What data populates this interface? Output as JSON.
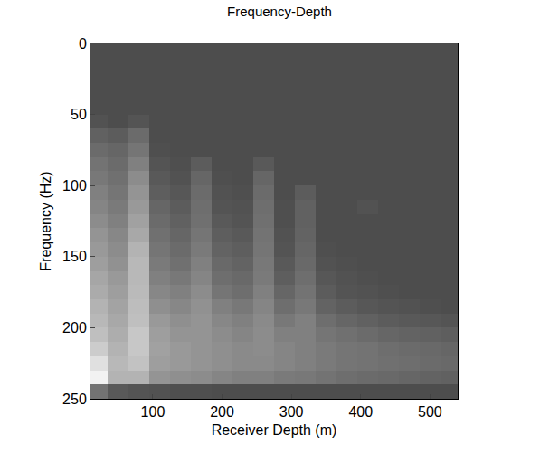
{
  "chart_data": {
    "type": "heatmap",
    "title": "Frequency-Depth",
    "x_label": "Receiver Depth (m)",
    "y_label": "Frequency (Hz)",
    "xlim": [
      10,
      540
    ],
    "xticks": [
      100,
      200,
      300,
      400,
      500
    ],
    "ylim": [
      250,
      0
    ],
    "yticks": [
      0,
      50,
      100,
      150,
      200,
      250
    ],
    "zlim": [
      0,
      1
    ],
    "x": [
      20,
      50,
      80,
      110,
      140,
      170,
      200,
      230,
      260,
      290,
      320,
      350,
      380,
      410,
      440,
      470,
      500,
      530
    ],
    "y": [
      5,
      15,
      25,
      35,
      45,
      55,
      65,
      75,
      85,
      95,
      105,
      115,
      125,
      135,
      145,
      155,
      165,
      175,
      185,
      195,
      205,
      215,
      225,
      235,
      245
    ],
    "z": [
      [
        0.3,
        0.3,
        0.3,
        0.3,
        0.3,
        0.3,
        0.3,
        0.3,
        0.3,
        0.3,
        0.3,
        0.3,
        0.3,
        0.3,
        0.3,
        0.3,
        0.3,
        0.3
      ],
      [
        0.3,
        0.3,
        0.3,
        0.3,
        0.3,
        0.3,
        0.3,
        0.3,
        0.3,
        0.3,
        0.3,
        0.3,
        0.3,
        0.3,
        0.3,
        0.3,
        0.3,
        0.3
      ],
      [
        0.3,
        0.3,
        0.3,
        0.3,
        0.3,
        0.3,
        0.3,
        0.3,
        0.3,
        0.3,
        0.3,
        0.3,
        0.3,
        0.3,
        0.3,
        0.3,
        0.3,
        0.3
      ],
      [
        0.3,
        0.3,
        0.3,
        0.3,
        0.3,
        0.3,
        0.3,
        0.3,
        0.3,
        0.3,
        0.3,
        0.3,
        0.3,
        0.3,
        0.3,
        0.3,
        0.3,
        0.3
      ],
      [
        0.3,
        0.3,
        0.3,
        0.3,
        0.3,
        0.3,
        0.3,
        0.3,
        0.3,
        0.3,
        0.3,
        0.3,
        0.3,
        0.3,
        0.3,
        0.3,
        0.3,
        0.3
      ],
      [
        0.32,
        0.3,
        0.33,
        0.3,
        0.3,
        0.3,
        0.3,
        0.3,
        0.3,
        0.3,
        0.3,
        0.3,
        0.3,
        0.3,
        0.3,
        0.3,
        0.3,
        0.3
      ],
      [
        0.38,
        0.36,
        0.42,
        0.3,
        0.3,
        0.3,
        0.3,
        0.3,
        0.3,
        0.3,
        0.3,
        0.3,
        0.3,
        0.3,
        0.3,
        0.3,
        0.3,
        0.3
      ],
      [
        0.42,
        0.4,
        0.46,
        0.31,
        0.3,
        0.3,
        0.3,
        0.3,
        0.3,
        0.3,
        0.3,
        0.3,
        0.3,
        0.3,
        0.3,
        0.3,
        0.3,
        0.3
      ],
      [
        0.45,
        0.42,
        0.5,
        0.33,
        0.31,
        0.36,
        0.3,
        0.3,
        0.35,
        0.3,
        0.3,
        0.3,
        0.3,
        0.3,
        0.3,
        0.3,
        0.3,
        0.3
      ],
      [
        0.47,
        0.44,
        0.55,
        0.35,
        0.32,
        0.4,
        0.31,
        0.3,
        0.4,
        0.3,
        0.3,
        0.3,
        0.3,
        0.3,
        0.3,
        0.3,
        0.3,
        0.3
      ],
      [
        0.5,
        0.46,
        0.58,
        0.37,
        0.34,
        0.42,
        0.32,
        0.31,
        0.42,
        0.3,
        0.36,
        0.3,
        0.3,
        0.3,
        0.3,
        0.3,
        0.3,
        0.3
      ],
      [
        0.52,
        0.48,
        0.6,
        0.4,
        0.36,
        0.43,
        0.33,
        0.32,
        0.43,
        0.31,
        0.38,
        0.3,
        0.3,
        0.32,
        0.3,
        0.3,
        0.3,
        0.3
      ],
      [
        0.55,
        0.5,
        0.63,
        0.42,
        0.38,
        0.44,
        0.35,
        0.33,
        0.44,
        0.31,
        0.38,
        0.3,
        0.3,
        0.3,
        0.3,
        0.3,
        0.3,
        0.3
      ],
      [
        0.58,
        0.53,
        0.66,
        0.44,
        0.4,
        0.46,
        0.37,
        0.35,
        0.45,
        0.32,
        0.39,
        0.3,
        0.3,
        0.3,
        0.3,
        0.3,
        0.3,
        0.3
      ],
      [
        0.6,
        0.55,
        0.7,
        0.46,
        0.42,
        0.48,
        0.39,
        0.37,
        0.46,
        0.33,
        0.4,
        0.31,
        0.3,
        0.3,
        0.3,
        0.3,
        0.3,
        0.3
      ],
      [
        0.62,
        0.57,
        0.72,
        0.48,
        0.44,
        0.5,
        0.41,
        0.39,
        0.47,
        0.35,
        0.41,
        0.32,
        0.31,
        0.3,
        0.3,
        0.3,
        0.3,
        0.3
      ],
      [
        0.65,
        0.6,
        0.72,
        0.5,
        0.47,
        0.52,
        0.43,
        0.41,
        0.48,
        0.37,
        0.43,
        0.34,
        0.32,
        0.31,
        0.3,
        0.3,
        0.3,
        0.3
      ],
      [
        0.67,
        0.62,
        0.73,
        0.53,
        0.5,
        0.55,
        0.46,
        0.43,
        0.5,
        0.4,
        0.45,
        0.36,
        0.33,
        0.32,
        0.31,
        0.3,
        0.3,
        0.3
      ],
      [
        0.7,
        0.64,
        0.74,
        0.56,
        0.53,
        0.57,
        0.5,
        0.47,
        0.52,
        0.43,
        0.47,
        0.39,
        0.36,
        0.34,
        0.33,
        0.32,
        0.31,
        0.3
      ],
      [
        0.72,
        0.66,
        0.75,
        0.6,
        0.56,
        0.58,
        0.53,
        0.5,
        0.54,
        0.47,
        0.5,
        0.43,
        0.4,
        0.38,
        0.36,
        0.35,
        0.34,
        0.33
      ],
      [
        0.75,
        0.68,
        0.78,
        0.62,
        0.58,
        0.58,
        0.55,
        0.52,
        0.55,
        0.5,
        0.5,
        0.46,
        0.44,
        0.42,
        0.4,
        0.39,
        0.38,
        0.37
      ],
      [
        0.8,
        0.7,
        0.78,
        0.63,
        0.6,
        0.58,
        0.56,
        0.54,
        0.55,
        0.52,
        0.5,
        0.48,
        0.46,
        0.45,
        0.43,
        0.42,
        0.41,
        0.4
      ],
      [
        0.88,
        0.72,
        0.76,
        0.62,
        0.6,
        0.58,
        0.56,
        0.54,
        0.54,
        0.52,
        0.5,
        0.48,
        0.46,
        0.45,
        0.44,
        0.43,
        0.42,
        0.41
      ],
      [
        0.95,
        0.7,
        0.7,
        0.58,
        0.56,
        0.55,
        0.52,
        0.5,
        0.5,
        0.48,
        0.47,
        0.45,
        0.43,
        0.42,
        0.41,
        0.4,
        0.39,
        0.38
      ],
      [
        0.45,
        0.35,
        0.33,
        0.32,
        0.31,
        0.31,
        0.3,
        0.3,
        0.3,
        0.3,
        0.3,
        0.3,
        0.3,
        0.3,
        0.3,
        0.3,
        0.3,
        0.3
      ]
    ]
  }
}
